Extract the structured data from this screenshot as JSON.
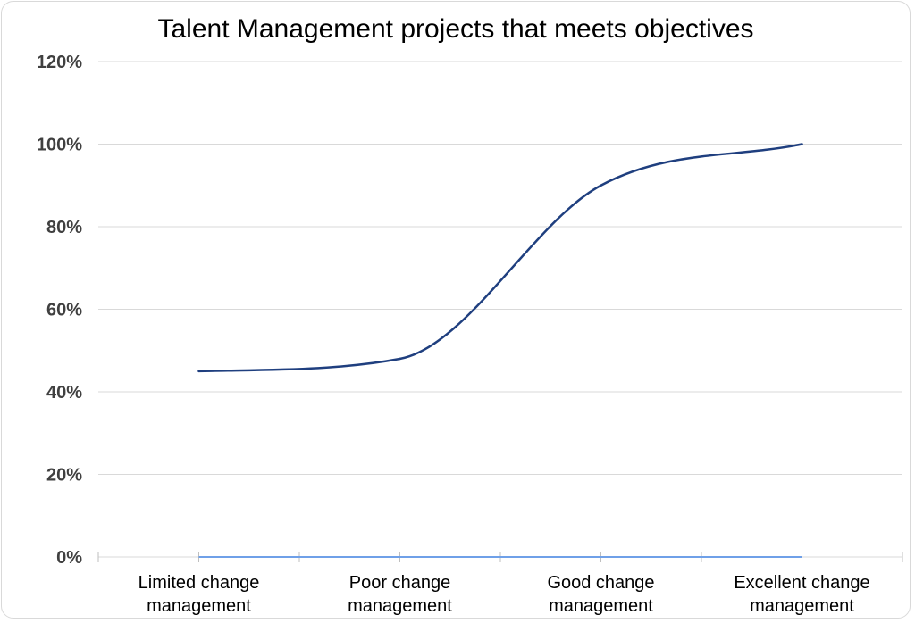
{
  "chart_data": {
    "type": "line",
    "title": "Talent Management projects that meets objectives",
    "categories": [
      [
        "Limited change",
        "management"
      ],
      [
        "Poor change",
        "management"
      ],
      [
        "Good change",
        "management"
      ],
      [
        "Excellent change",
        "management"
      ]
    ],
    "series": [
      {
        "values": [
          45,
          48,
          90,
          100
        ],
        "color": "#1f3f7f"
      }
    ],
    "y_ticks": [
      "0%",
      "20%",
      "40%",
      "60%",
      "80%",
      "100%",
      "120%"
    ],
    "ylim": [
      0,
      120
    ],
    "grid": true,
    "smooth": true,
    "baseline_color": "#6fa0e8",
    "gridline_color": "#d9d9d9"
  }
}
